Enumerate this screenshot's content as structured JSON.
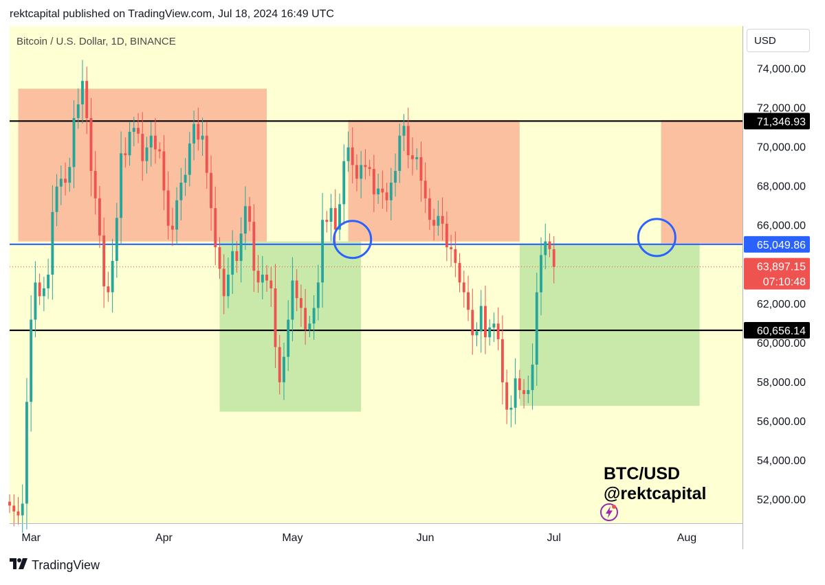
{
  "header": {
    "published": "rektcapital published on TradingView.com, Jul 18, 2024 16:49 UTC"
  },
  "footer": {
    "brand": "TradingView",
    "logo_icon": "tradingview-logo-icon"
  },
  "toolbar": {
    "currency": "USD"
  },
  "watermark": {
    "line1": "BTC/USD",
    "line2": "@rektcapital",
    "icon": "lightning-bolt-icon"
  },
  "colors": {
    "background": "#ffffd4",
    "bull": "#26a69a",
    "bear": "#ef5350",
    "red_zone": "rgba(246,140,115,0.55)",
    "green_zone": "rgba(120,200,110,0.40)",
    "level_line": "#000000",
    "mid_line": "#2962ff",
    "circle": "#2962ff"
  },
  "chart_data": {
    "type": "candlestick",
    "title": "Bitcoin / U.S. Dollar, 1D, BINANCE",
    "xlabel": "",
    "ylabel": "",
    "x_ticks": [
      "Mar",
      "Apr",
      "May",
      "Jun",
      "Jul",
      "Aug"
    ],
    "y_ticks": [
      52000,
      54000,
      56000,
      58000,
      60000,
      62000,
      64000,
      66000,
      68000,
      70000,
      72000,
      74000
    ],
    "y_tick_labels": [
      "52,000.00",
      "54,000.00",
      "56,000.00",
      "58,000.00",
      "60,000.00",
      "62,000.00",
      "64,000.00",
      "66,000.00",
      "68,000.00",
      "70,000.00",
      "72,000.00",
      "74,000.00"
    ],
    "ylim": [
      50800,
      76200
    ],
    "x_range_dates": [
      "2024-02-25",
      "2024-08-14"
    ],
    "horizontal_levels": [
      {
        "value": 71346.93,
        "label": "71,346.93",
        "color": "#000000"
      },
      {
        "value": 65049.86,
        "label": "65,049.86",
        "color": "#2962ff"
      },
      {
        "value": 60656.14,
        "label": "60,656.14",
        "color": "#000000"
      }
    ],
    "current_price": {
      "value": 63897.15,
      "label": "63,897.15",
      "countdown": "07:10:48"
    },
    "zones": [
      {
        "type": "resistance",
        "x0": "2024-02-27",
        "x1": "2024-04-25",
        "y0": 65200,
        "y1": 73000
      },
      {
        "type": "support",
        "x0": "2024-04-14",
        "x1": "2024-05-17",
        "y0": 56500,
        "y1": 65200
      },
      {
        "type": "resistance",
        "x0": "2024-05-14",
        "x1": "2024-06-23",
        "y0": 65200,
        "y1": 71400
      },
      {
        "type": "support",
        "x0": "2024-06-23",
        "x1": "2024-08-04",
        "y0": 56800,
        "y1": 65100
      },
      {
        "type": "resistance",
        "x0": "2024-07-26",
        "x1": "2024-08-14",
        "y0": 65100,
        "y1": 71400
      }
    ],
    "circles": [
      {
        "date": "2024-05-15",
        "value": 65300
      },
      {
        "date": "2024-07-25",
        "value": 65400
      }
    ],
    "close_start_date": "2024-02-25",
    "closes": [
      51700,
      51400,
      51200,
      51800,
      57000,
      61200,
      63100,
      62400,
      62800,
      63500,
      66700,
      68000,
      68400,
      68200,
      69000,
      71500,
      72200,
      73400,
      71500,
      68800,
      67400,
      65500,
      62900,
      62600,
      64200,
      66400,
      69700,
      69600,
      70800,
      71000,
      70700,
      69300,
      70000,
      70600,
      69900,
      69800,
      67800,
      66000,
      65800,
      67300,
      68200,
      68600,
      70200,
      71200,
      70400,
      70600,
      68700,
      66900,
      64900,
      63800,
      62400,
      63500,
      64700,
      64200,
      65600,
      67000,
      66200,
      63700,
      63100,
      63500,
      63200,
      62800,
      59800,
      58000,
      59300,
      61200,
      63200,
      62300,
      61800,
      60700,
      61000,
      61800,
      63100,
      66300,
      66200,
      66900,
      65800,
      67100,
      69300,
      70000,
      69100,
      68400,
      69100,
      69000,
      68900,
      67600,
      67900,
      67700,
      67300,
      68200,
      68800,
      70600,
      71100,
      69600,
      69400,
      69500,
      68300,
      67400,
      66300,
      66000,
      66500,
      66100,
      64900,
      64800,
      64100,
      63100,
      62600,
      61700,
      60400,
      60600,
      61900,
      60300,
      60800,
      61000,
      60200,
      58000,
      56600,
      56700,
      58200,
      57600,
      57400,
      57600,
      58900,
      62600,
      64500,
      65200,
      64800,
      63900
    ]
  }
}
